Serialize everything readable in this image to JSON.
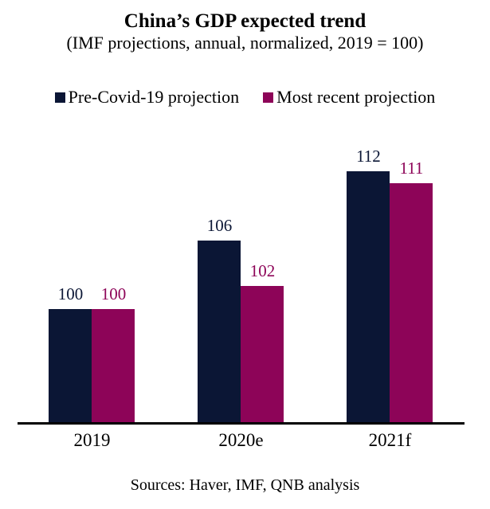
{
  "chart_data": {
    "type": "bar",
    "title": "China’s GDP expected trend",
    "subtitle": "(IMF projections, annual, normalized, 2019 = 100)",
    "categories": [
      "2019",
      "2020e",
      "2021f"
    ],
    "series": [
      {
        "name": "Pre-Covid-19 projection",
        "color": "#0b1635",
        "values": [
          100,
          106,
          112
        ]
      },
      {
        "name": "Most recent projection",
        "color": "#8d0458",
        "values": [
          100,
          102,
          111
        ]
      }
    ],
    "ylim": [
      90,
      115
    ],
    "grid": false,
    "legend_position": "top",
    "data_labels": true,
    "axis_color": "#000000",
    "background_color": "#ffffff"
  },
  "footer": {
    "sources": "Sources: Haver, IMF, QNB analysis"
  }
}
